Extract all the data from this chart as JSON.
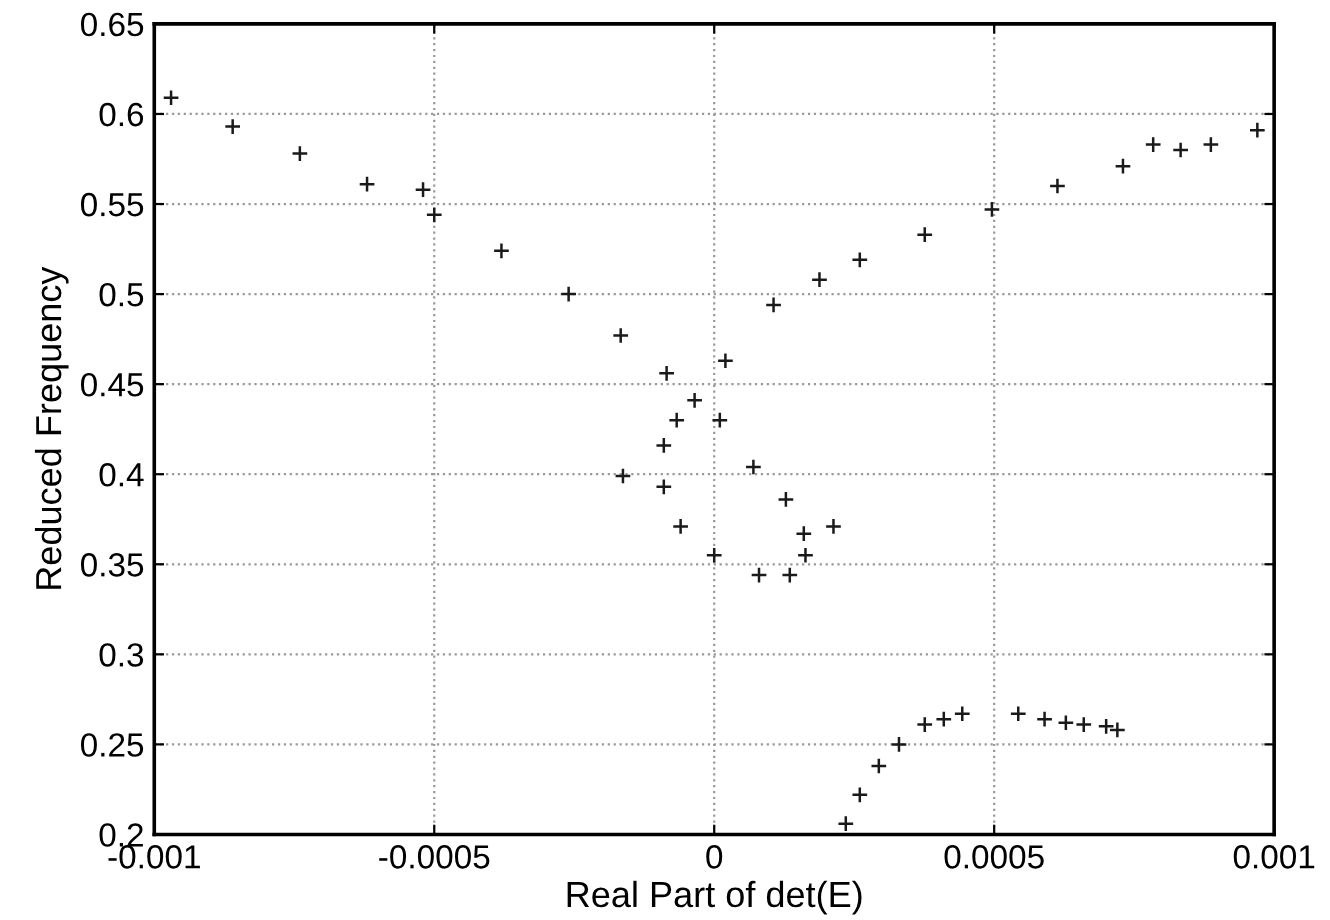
{
  "chart_data": {
    "type": "scatter",
    "xlabel": "Real Part of det(E)",
    "ylabel": "Reduced Frequency",
    "xlim": [
      -0.001,
      0.001
    ],
    "ylim": [
      0.2,
      0.65
    ],
    "xticks": [
      -0.001,
      -0.0005,
      0,
      0.0005,
      0.001
    ],
    "yticks": [
      0.2,
      0.25,
      0.3,
      0.35,
      0.4,
      0.45,
      0.5,
      0.55,
      0.6,
      0.65
    ],
    "grid": true,
    "marker": "cross",
    "series": [
      {
        "color": "#1a1a1a",
        "x": [
          -0.00097,
          -0.00086,
          -0.00074,
          -0.00062,
          -0.0005,
          -0.00038,
          -0.00026,
          -0.000167,
          -8.5e-05,
          -3.5e-05,
          1e-05,
          7e-05,
          0.000128,
          0.00016,
          0.000163,
          0.000135,
          -0.00052,
          0.000213
        ],
        "values": [
          0.609,
          0.593,
          0.578,
          0.561,
          0.544,
          0.524,
          0.5,
          0.477,
          0.456,
          0.441,
          0.43,
          0.404,
          0.386,
          0.367,
          0.355,
          0.344,
          0.558,
          0.371
        ]
      },
      {
        "color": "#1a1a1a",
        "x": [
          8e-05,
          0,
          -6e-05,
          -9e-05,
          -9e-05,
          -6.7e-05,
          2e-05,
          0.000106,
          0.000188,
          0.00026,
          0.000376,
          0.000496,
          0.000613,
          0.00073,
          0.000833,
          0.000887,
          0.00097,
          -0.000163,
          0.000784
        ],
        "values": [
          0.344,
          0.355,
          0.371,
          0.393,
          0.416,
          0.43,
          0.463,
          0.494,
          0.508,
          0.519,
          0.533,
          0.547,
          0.56,
          0.571,
          0.58,
          0.583,
          0.591,
          0.399,
          0.583
        ]
      },
      {
        "color": "#1a1a1a",
        "x": [
          0.000235,
          0.00026,
          0.000294,
          0.00033,
          0.000376,
          0.00041,
          0.000443,
          0.000543,
          0.00059,
          0.000628,
          0.00066,
          0.0007,
          0.00072
        ],
        "values": [
          0.206,
          0.222,
          0.238,
          0.25,
          0.261,
          0.264,
          0.267,
          0.267,
          0.264,
          0.262,
          0.261,
          0.26,
          0.258
        ]
      }
    ]
  }
}
